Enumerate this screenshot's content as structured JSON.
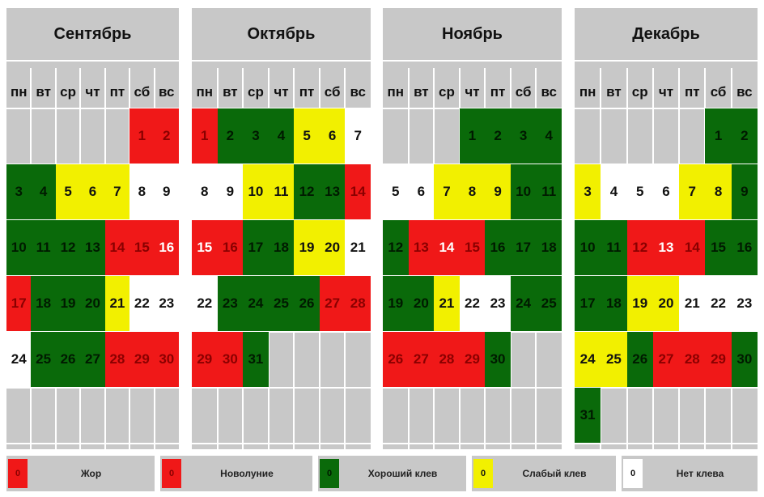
{
  "weekdays": [
    "пн",
    "вт",
    "ср",
    "чт",
    "пт",
    "сб",
    "вс"
  ],
  "colors": {
    "red": "#f01818",
    "green": "#0a6a0a",
    "yellow": "#f2f000",
    "white": "#ffffff",
    "grey": "#c8c8c8"
  },
  "months": [
    {
      "name": "Сентябрь",
      "days": [
        {
          "d": "1",
          "c": "red"
        },
        {
          "d": "2",
          "c": "red"
        },
        {
          "d": "3",
          "c": "green"
        },
        {
          "d": "4",
          "c": "green"
        },
        {
          "d": "5",
          "c": "yellow"
        },
        {
          "d": "6",
          "c": "yellow"
        },
        {
          "d": "7",
          "c": "yellow"
        },
        {
          "d": "8",
          "c": "white"
        },
        {
          "d": "9",
          "c": "white"
        },
        {
          "d": "10",
          "c": "green"
        },
        {
          "d": "11",
          "c": "green"
        },
        {
          "d": "12",
          "c": "green"
        },
        {
          "d": "13",
          "c": "green"
        },
        {
          "d": "14",
          "c": "red"
        },
        {
          "d": "15",
          "c": "red"
        },
        {
          "d": "16",
          "c": "red",
          "hl": true
        },
        {
          "d": "17",
          "c": "red"
        },
        {
          "d": "18",
          "c": "green"
        },
        {
          "d": "19",
          "c": "green"
        },
        {
          "d": "20",
          "c": "green"
        },
        {
          "d": "21",
          "c": "yellow"
        },
        {
          "d": "22",
          "c": "white"
        },
        {
          "d": "23",
          "c": "white"
        },
        {
          "d": "24",
          "c": "white"
        },
        {
          "d": "25",
          "c": "green"
        },
        {
          "d": "26",
          "c": "green"
        },
        {
          "d": "27",
          "c": "green"
        },
        {
          "d": "28",
          "c": "red"
        },
        {
          "d": "29",
          "c": "red"
        },
        {
          "d": "30",
          "c": "red"
        }
      ]
    },
    {
      "name": "Октябрь",
      "days": [
        {
          "d": "1",
          "c": "red"
        },
        {
          "d": "2",
          "c": "green"
        },
        {
          "d": "3",
          "c": "green"
        },
        {
          "d": "4",
          "c": "green"
        },
        {
          "d": "5",
          "c": "yellow"
        },
        {
          "d": "6",
          "c": "yellow"
        },
        {
          "d": "7",
          "c": "white"
        },
        {
          "d": "8",
          "c": "white"
        },
        {
          "d": "9",
          "c": "white"
        },
        {
          "d": "10",
          "c": "yellow"
        },
        {
          "d": "11",
          "c": "yellow"
        },
        {
          "d": "12",
          "c": "green"
        },
        {
          "d": "13",
          "c": "green"
        },
        {
          "d": "14",
          "c": "red"
        },
        {
          "d": "15",
          "c": "red",
          "hl": true
        },
        {
          "d": "16",
          "c": "red"
        },
        {
          "d": "17",
          "c": "green"
        },
        {
          "d": "18",
          "c": "green"
        },
        {
          "d": "19",
          "c": "yellow"
        },
        {
          "d": "20",
          "c": "yellow"
        },
        {
          "d": "21",
          "c": "white"
        },
        {
          "d": "22",
          "c": "white"
        },
        {
          "d": "23",
          "c": "green"
        },
        {
          "d": "24",
          "c": "green"
        },
        {
          "d": "25",
          "c": "green"
        },
        {
          "d": "26",
          "c": "green"
        },
        {
          "d": "27",
          "c": "red"
        },
        {
          "d": "28",
          "c": "red"
        },
        {
          "d": "29",
          "c": "red"
        },
        {
          "d": "30",
          "c": "red"
        },
        {
          "d": "31",
          "c": "green"
        }
      ]
    },
    {
      "name": "Ноябрь",
      "days": [
        {
          "d": "1",
          "c": "green"
        },
        {
          "d": "2",
          "c": "green"
        },
        {
          "d": "3",
          "c": "green"
        },
        {
          "d": "4",
          "c": "green"
        },
        {
          "d": "5",
          "c": "white"
        },
        {
          "d": "6",
          "c": "white"
        },
        {
          "d": "7",
          "c": "yellow"
        },
        {
          "d": "8",
          "c": "yellow"
        },
        {
          "d": "9",
          "c": "yellow"
        },
        {
          "d": "10",
          "c": "green"
        },
        {
          "d": "11",
          "c": "green"
        },
        {
          "d": "12",
          "c": "green"
        },
        {
          "d": "13",
          "c": "red"
        },
        {
          "d": "14",
          "c": "red",
          "hl": true
        },
        {
          "d": "15",
          "c": "red"
        },
        {
          "d": "16",
          "c": "green"
        },
        {
          "d": "17",
          "c": "green"
        },
        {
          "d": "18",
          "c": "green"
        },
        {
          "d": "19",
          "c": "green"
        },
        {
          "d": "20",
          "c": "green"
        },
        {
          "d": "21",
          "c": "yellow"
        },
        {
          "d": "22",
          "c": "white"
        },
        {
          "d": "23",
          "c": "white"
        },
        {
          "d": "24",
          "c": "green"
        },
        {
          "d": "25",
          "c": "green"
        },
        {
          "d": "26",
          "c": "red"
        },
        {
          "d": "27",
          "c": "red"
        },
        {
          "d": "28",
          "c": "red"
        },
        {
          "d": "29",
          "c": "red"
        },
        {
          "d": "30",
          "c": "green"
        }
      ]
    },
    {
      "name": "Декабрь",
      "days": [
        {
          "d": "1",
          "c": "green"
        },
        {
          "d": "2",
          "c": "green"
        },
        {
          "d": "3",
          "c": "yellow"
        },
        {
          "d": "4",
          "c": "white"
        },
        {
          "d": "5",
          "c": "white"
        },
        {
          "d": "6",
          "c": "white"
        },
        {
          "d": "7",
          "c": "yellow"
        },
        {
          "d": "8",
          "c": "yellow"
        },
        {
          "d": "9",
          "c": "green"
        },
        {
          "d": "10",
          "c": "green"
        },
        {
          "d": "11",
          "c": "green"
        },
        {
          "d": "12",
          "c": "red"
        },
        {
          "d": "13",
          "c": "red",
          "hl": true
        },
        {
          "d": "14",
          "c": "red"
        },
        {
          "d": "15",
          "c": "green"
        },
        {
          "d": "16",
          "c": "green"
        },
        {
          "d": "17",
          "c": "green"
        },
        {
          "d": "18",
          "c": "green"
        },
        {
          "d": "19",
          "c": "yellow"
        },
        {
          "d": "20",
          "c": "yellow"
        },
        {
          "d": "21",
          "c": "white"
        },
        {
          "d": "22",
          "c": "white"
        },
        {
          "d": "23",
          "c": "white"
        },
        {
          "d": "24",
          "c": "yellow"
        },
        {
          "d": "25",
          "c": "yellow"
        },
        {
          "d": "26",
          "c": "green"
        },
        {
          "d": "27",
          "c": "red"
        },
        {
          "d": "28",
          "c": "red"
        },
        {
          "d": "29",
          "c": "red"
        },
        {
          "d": "30",
          "c": "green"
        },
        {
          "d": "31",
          "c": "green"
        }
      ]
    }
  ],
  "legend": [
    {
      "sample": "0",
      "c": "red",
      "label": "Жор"
    },
    {
      "sample": "0",
      "c": "red",
      "label": "Новолуние"
    },
    {
      "sample": "0",
      "c": "green",
      "label": "Хороший клев"
    },
    {
      "sample": "0",
      "c": "yellow",
      "label": "Слабый клев"
    },
    {
      "sample": "0",
      "c": "white",
      "label": "Нет клева"
    }
  ]
}
